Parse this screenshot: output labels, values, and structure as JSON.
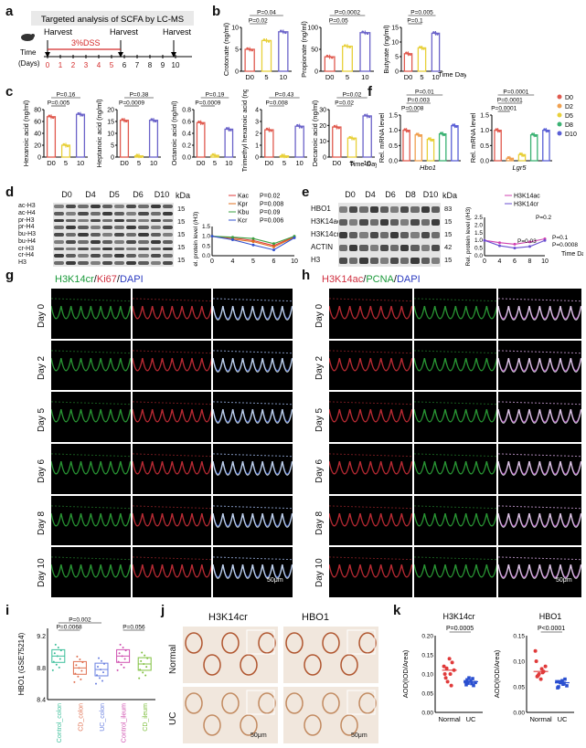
{
  "panel_letters": [
    "a",
    "b",
    "c",
    "d",
    "e",
    "f",
    "g",
    "h",
    "i",
    "j",
    "k"
  ],
  "panel_a": {
    "title": "Targeted analysis of SCFA by LC-MS",
    "harvest": "Harvest",
    "dss": "3%DSS",
    "time_label": "Time",
    "days_label": "(Days)",
    "days": [
      "0",
      "1",
      "2",
      "3",
      "4",
      "5",
      "6",
      "7",
      "8",
      "9",
      "10"
    ]
  },
  "chart_data": [
    {
      "panel": "b",
      "type": "bar",
      "ylabel": "Crotonate (ng/ml)",
      "categories": [
        "D0",
        "5",
        "10"
      ],
      "values": [
        5,
        7,
        9
      ],
      "ylim": [
        0,
        10
      ],
      "yticks": [
        "0",
        "5",
        "10"
      ],
      "pvalues": [
        "P=0.02",
        "P=0.04"
      ],
      "colors": [
        "#e05a4f",
        "#e8d03a",
        "#6b63c9"
      ]
    },
    {
      "panel": "b",
      "type": "bar",
      "ylabel": "Propionate (ng/ml)",
      "categories": [
        "D0",
        "5",
        "10"
      ],
      "values": [
        33,
        57,
        88
      ],
      "ylim": [
        0,
        100
      ],
      "yticks": [
        "0",
        "50",
        "100"
      ],
      "pvalues": [
        "P=0.05",
        "P=0.0002"
      ],
      "colors": [
        "#e05a4f",
        "#e8d03a",
        "#6b63c9"
      ]
    },
    {
      "panel": "b",
      "type": "bar",
      "ylabel": "Butyrate (ng/ml)",
      "categories": [
        "D0",
        "5",
        "10"
      ],
      "values": [
        6,
        8,
        13
      ],
      "ylim": [
        0,
        15
      ],
      "yticks": [
        "0",
        "5",
        "10",
        "15"
      ],
      "pvalues": [
        "P=0.1",
        "P=0.005"
      ],
      "xlabel": "Time Days",
      "colors": [
        "#e05a4f",
        "#e8d03a",
        "#6b63c9"
      ]
    },
    {
      "panel": "c",
      "type": "bar",
      "ylabel": "Hexanoic acid (ng/ml)",
      "categories": [
        "D0",
        "5",
        "10"
      ],
      "values": [
        68,
        20,
        72
      ],
      "ylim": [
        0,
        80
      ],
      "yticks": [
        "0",
        "20",
        "40",
        "60",
        "80"
      ],
      "pvalues": [
        "P=0.005",
        "P=0.16"
      ],
      "colors": [
        "#e05a4f",
        "#e8d03a",
        "#6b63c9"
      ]
    },
    {
      "panel": "c",
      "type": "bar",
      "ylabel": "Heptanoic acid (ng/ml)",
      "categories": [
        "D0",
        "5",
        "10"
      ],
      "values": [
        15.5,
        0.5,
        15.5
      ],
      "ylim": [
        0,
        20
      ],
      "yticks": [
        "0",
        "5",
        "10",
        "15",
        "20"
      ],
      "pvalues": [
        "P=0.0009",
        "P=0.38"
      ],
      "colors": [
        "#e05a4f",
        "#e8d03a",
        "#6b63c9"
      ]
    },
    {
      "panel": "c",
      "type": "bar",
      "ylabel": "Octanoic acid (ng/ml)",
      "categories": [
        "D0",
        "5",
        "10"
      ],
      "values": [
        0.58,
        0.03,
        0.47
      ],
      "ylim": [
        0,
        0.8
      ],
      "yticks": [
        "0.0",
        "0.2",
        "0.4",
        "0.6",
        "0.8"
      ],
      "pvalues": [
        "P=0.0009",
        "P=0.19"
      ],
      "colors": [
        "#e05a4f",
        "#e8d03a",
        "#6b63c9"
      ]
    },
    {
      "panel": "c",
      "type": "bar",
      "ylabel": "3,5,5-Trimethyl hexanoic acid (ng/ml)",
      "categories": [
        "D0",
        "5",
        "10"
      ],
      "values": [
        2.3,
        0.1,
        2.6
      ],
      "ylim": [
        0,
        4
      ],
      "yticks": [
        "0",
        "1",
        "2",
        "3",
        "4"
      ],
      "pvalues": [
        "P=0.008",
        "P=0.43"
      ],
      "colors": [
        "#e05a4f",
        "#e8d03a",
        "#6b63c9"
      ]
    },
    {
      "panel": "c",
      "type": "bar",
      "ylabel": "Decanoic acid (ng/ml)",
      "categories": [
        "D0",
        "5",
        "10"
      ],
      "values": [
        19,
        12,
        26
      ],
      "ylim": [
        0,
        30
      ],
      "yticks": [
        "0",
        "10",
        "20",
        "30"
      ],
      "pvalues": [
        "P=0.02",
        "P=0.02"
      ],
      "xlabel": "Time Days",
      "colors": [
        "#e05a4f",
        "#e8d03a",
        "#6b63c9"
      ]
    },
    {
      "panel": "f",
      "type": "bar",
      "ylabel": "Rel. mRNA level",
      "xlabel": "Hbo1",
      "categories": [
        "D0",
        "D2",
        "D5",
        "D8",
        "D10"
      ],
      "values": [
        1.0,
        0.85,
        0.7,
        0.88,
        1.15
      ],
      "ylim": [
        0,
        1.5
      ],
      "yticks": [
        "0.0",
        "0.5",
        "1.0",
        "1.5"
      ],
      "pvalues": [
        "P=0.008",
        "P=0.003",
        "P=0.01"
      ],
      "colors": [
        "#e05a4f",
        "#f0a050",
        "#e8d03a",
        "#3bb273",
        "#5a5fd6"
      ]
    },
    {
      "panel": "f",
      "type": "bar",
      "ylabel": "Rel. mRNA level",
      "xlabel": "Lgr5",
      "categories": [
        "D0",
        "D2",
        "D5",
        "D8",
        "D10"
      ],
      "values": [
        1.0,
        0.08,
        0.2,
        0.85,
        1.0
      ],
      "ylim": [
        0,
        1.5
      ],
      "yticks": [
        "0.0",
        "0.5",
        "1.0",
        "1.5"
      ],
      "pvalues": [
        "P=0.0001",
        "P=0.0001",
        "P=0.0001"
      ],
      "legend": [
        "D0",
        "D2",
        "D5",
        "D8",
        "D10"
      ],
      "colors": [
        "#e05a4f",
        "#f0a050",
        "#e8d03a",
        "#3bb273",
        "#5a5fd6"
      ]
    },
    {
      "panel": "d",
      "type": "line",
      "ylabel": "Rel. protein level (/H3)",
      "x": [
        "0",
        "4",
        "5",
        "6",
        "10"
      ],
      "ylim": [
        0,
        1.5
      ],
      "yticks": [
        "0.0",
        "0.5",
        "1.0",
        "1.5"
      ],
      "series": [
        {
          "name": "Kac",
          "values": [
            1.0,
            0.92,
            0.78,
            0.52,
            0.98
          ],
          "color": "#e03a3a",
          "p": "P=0.02"
        },
        {
          "name": "Kpr",
          "values": [
            1.0,
            0.85,
            0.72,
            0.45,
            0.95
          ],
          "color": "#e07020",
          "p": "P=0.008"
        },
        {
          "name": "Kbu",
          "values": [
            1.0,
            0.95,
            0.88,
            0.62,
            1.0
          ],
          "color": "#3aa040",
          "p": "P=0.09"
        },
        {
          "name": "Kcr",
          "values": [
            1.0,
            0.82,
            0.55,
            0.3,
            0.92
          ],
          "color": "#3050d0",
          "p": "P=0.006"
        }
      ]
    },
    {
      "panel": "e",
      "type": "line",
      "ylabel": "Rel. protein level (/H3)",
      "x": [
        "0",
        "4",
        "6",
        "8",
        "10"
      ],
      "ylim": [
        0,
        2.5
      ],
      "yticks": [
        "0.0",
        "0.5",
        "1.0",
        "1.5",
        "2.0",
        "2.5"
      ],
      "xlabel": "Time Days",
      "series": [
        {
          "name": "H3K14ac",
          "values": [
            1.0,
            0.85,
            0.75,
            0.9,
            1.1
          ],
          "color": "#d040b0"
        },
        {
          "name": "H3K14cr",
          "values": [
            1.0,
            0.65,
            0.5,
            0.6,
            1.0
          ],
          "color": "#6a4fd0"
        }
      ],
      "pvalues": [
        "P=0.03",
        "P=0.2",
        "P=0.1",
        "P=0.0008"
      ]
    },
    {
      "panel": "i",
      "type": "box",
      "ylabel": "HBO1 (GSE75214)",
      "categories": [
        "Control_colon",
        "CD_colon",
        "UC_colon",
        "Control_ileum",
        "CD_ileum"
      ],
      "medians": [
        8.95,
        8.8,
        8.78,
        8.95,
        8.85
      ],
      "ylim": [
        8.4,
        9.3
      ],
      "yticks": [
        "8.4",
        "8.8",
        "9.2"
      ],
      "pvalues": [
        "P=0.002",
        "P=0.0068",
        "P=0.056"
      ],
      "colors": [
        "#3bbf9a",
        "#e07050",
        "#6a80e0",
        "#d050b0",
        "#80c040"
      ]
    },
    {
      "panel": "k",
      "type": "scatter",
      "title": "H3K14cr",
      "ylabel": "AOD(IOD/Area)",
      "categories": [
        "Normal",
        "UC"
      ],
      "means": [
        0.11,
        0.08
      ],
      "ylim": [
        0,
        0.2
      ],
      "yticks": [
        "0.00",
        "0.05",
        "0.10",
        "0.15",
        "0.20"
      ],
      "pvalues": [
        "P=0.0005"
      ],
      "points": [
        [
          0.12,
          0.1,
          0.09,
          0.13,
          0.08,
          0.11,
          0.14,
          0.1,
          0.07,
          0.115
        ],
        [
          0.08,
          0.075,
          0.085,
          0.07,
          0.09,
          0.078,
          0.082,
          0.072,
          0.088,
          0.076
        ]
      ],
      "colors": [
        "#e03a3a",
        "#2a4fd0"
      ]
    },
    {
      "panel": "k",
      "type": "scatter",
      "title": "HBO1",
      "ylabel": "AOD(IOD/Area)",
      "categories": [
        "Normal",
        "UC"
      ],
      "means": [
        0.08,
        0.058
      ],
      "ylim": [
        0,
        0.15
      ],
      "yticks": [
        "0.00",
        "0.05",
        "0.10",
        "0.15"
      ],
      "pvalues": [
        "P<0.0001"
      ],
      "points": [
        [
          0.12,
          0.085,
          0.07,
          0.08,
          0.075,
          0.09,
          0.065,
          0.1,
          0.078,
          0.072
        ],
        [
          0.06,
          0.055,
          0.05,
          0.065,
          0.058,
          0.052,
          0.062,
          0.048,
          0.057,
          0.06
        ]
      ],
      "colors": [
        "#e03a3a",
        "#2a4fd0"
      ]
    }
  ],
  "panel_d": {
    "lanes": [
      "D0",
      "D4",
      "D5",
      "D6",
      "D10"
    ],
    "rows": [
      "ac-H3",
      "ac-H4",
      "pr-H3",
      "pr-H4",
      "bu-H3",
      "bu-H4",
      "cr-H3",
      "cr-H4",
      "H3"
    ],
    "kda": "kDa",
    "markers": [
      "15",
      "15",
      "15",
      "15",
      "15"
    ]
  },
  "panel_e": {
    "lanes": [
      "D0",
      "D4",
      "D6",
      "D8",
      "D10"
    ],
    "rows": [
      "HBO1",
      "H3K14ac",
      "H3K14cr",
      "ACTIN",
      "H3"
    ],
    "kda": "kDa",
    "markers": [
      "83",
      "15",
      "15",
      "42",
      "15"
    ]
  },
  "panel_g": {
    "title_a": "H3K14cr",
    "sep1": "/",
    "title_b": "Ki67",
    "sep2": "/",
    "title_c": "DAPI",
    "days": [
      "Day 0",
      "Day 2",
      "Day 5",
      "Day 6",
      "Day 8",
      "Day 10"
    ],
    "scale": "50μm"
  },
  "panel_h": {
    "title_a": "H3K14ac",
    "sep1": "/",
    "title_b": "PCNA",
    "sep2": "/",
    "title_c": "DAPI",
    "days": [
      "Day 0",
      "Day 2",
      "Day 5",
      "Day 6",
      "Day 8",
      "Day 10"
    ],
    "scale": "50μm"
  },
  "panel_j": {
    "cols": [
      "H3K14cr",
      "HBO1"
    ],
    "rows": [
      "Normal",
      "UC"
    ],
    "scale": "50μm"
  }
}
